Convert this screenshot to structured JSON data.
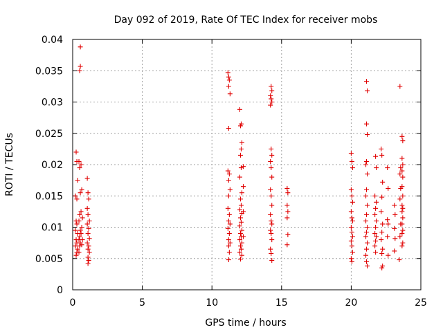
{
  "chart_data": {
    "type": "scatter",
    "title": "Day 092 of 2019, Rate Of TEC Index for receiver mobs",
    "xlabel": "GPS time / hours",
    "ylabel": "ROTI / TECUs",
    "xlim": [
      0,
      25
    ],
    "ylim": [
      0,
      0.04
    ],
    "xticks": [
      0,
      5,
      10,
      15,
      20,
      25
    ],
    "xtick_labels": [
      "0",
      "5",
      "10",
      "15",
      "20",
      "25"
    ],
    "yticks": [
      0,
      0.005,
      0.01,
      0.015,
      0.02,
      0.025,
      0.03,
      0.035,
      0.04
    ],
    "ytick_labels": [
      "0",
      "0.005",
      "0.01",
      "0.015",
      "0.02",
      "0.025",
      "0.03",
      "0.035",
      "0.04"
    ],
    "grid": true,
    "marker": "+",
    "marker_color": "#e00000",
    "series": [
      {
        "name": "ROTI",
        "points": [
          [
            0.25,
            0.022
          ],
          [
            0.3,
            0.0205
          ],
          [
            0.35,
            0.0175
          ],
          [
            0.2,
            0.015
          ],
          [
            0.3,
            0.0145
          ],
          [
            0.25,
            0.011
          ],
          [
            0.3,
            0.0105
          ],
          [
            0.2,
            0.0095
          ],
          [
            0.35,
            0.009
          ],
          [
            0.25,
            0.008
          ],
          [
            0.3,
            0.0075
          ],
          [
            0.2,
            0.007
          ],
          [
            0.35,
            0.0065
          ],
          [
            0.3,
            0.006
          ],
          [
            0.25,
            0.0055
          ],
          [
            0.45,
            0.0205
          ],
          [
            0.5,
            0.0195
          ],
          [
            0.55,
            0.0155
          ],
          [
            0.5,
            0.012
          ],
          [
            0.45,
            0.011
          ],
          [
            0.55,
            0.0095
          ],
          [
            0.5,
            0.0085
          ],
          [
            0.45,
            0.008
          ],
          [
            0.55,
            0.0075
          ],
          [
            0.5,
            0.007
          ],
          [
            0.45,
            0.006
          ],
          [
            0.55,
            0.0388
          ],
          [
            0.55,
            0.0357
          ],
          [
            0.5,
            0.035
          ],
          [
            0.6,
            0.02
          ],
          [
            0.65,
            0.016
          ],
          [
            0.6,
            0.0125
          ],
          [
            0.7,
            0.0115
          ],
          [
            0.65,
            0.01
          ],
          [
            0.6,
            0.009
          ],
          [
            0.7,
            0.008
          ],
          [
            0.65,
            0.0072
          ],
          [
            1.05,
            0.0178
          ],
          [
            1.1,
            0.0155
          ],
          [
            1.15,
            0.0145
          ],
          [
            1.05,
            0.013
          ],
          [
            1.1,
            0.012
          ],
          [
            1.2,
            0.011
          ],
          [
            1.05,
            0.0105
          ],
          [
            1.15,
            0.0098
          ],
          [
            1.1,
            0.009
          ],
          [
            1.2,
            0.0082
          ],
          [
            1.05,
            0.0075
          ],
          [
            1.15,
            0.007
          ],
          [
            1.1,
            0.0065
          ],
          [
            1.2,
            0.006
          ],
          [
            1.1,
            0.0052
          ],
          [
            1.15,
            0.0047
          ],
          [
            1.1,
            0.0042
          ],
          [
            11.15,
            0.0347
          ],
          [
            11.2,
            0.034
          ],
          [
            11.25,
            0.0335
          ],
          [
            11.2,
            0.0325
          ],
          [
            11.3,
            0.0313
          ],
          [
            11.2,
            0.0258
          ],
          [
            11.15,
            0.019
          ],
          [
            11.25,
            0.0185
          ],
          [
            11.2,
            0.0175
          ],
          [
            11.3,
            0.016
          ],
          [
            11.2,
            0.015
          ],
          [
            11.15,
            0.013
          ],
          [
            11.25,
            0.012
          ],
          [
            11.2,
            0.011
          ],
          [
            11.3,
            0.0105
          ],
          [
            11.15,
            0.0098
          ],
          [
            11.25,
            0.009
          ],
          [
            11.2,
            0.008
          ],
          [
            11.3,
            0.0075
          ],
          [
            11.2,
            0.007
          ],
          [
            11.25,
            0.006
          ],
          [
            11.2,
            0.0048
          ],
          [
            12.0,
            0.0288
          ],
          [
            12.1,
            0.0265
          ],
          [
            12.05,
            0.0262
          ],
          [
            12.15,
            0.0235
          ],
          [
            12.1,
            0.0225
          ],
          [
            12.05,
            0.0215
          ],
          [
            12.1,
            0.0195
          ],
          [
            12.0,
            0.018
          ],
          [
            12.15,
            0.0155
          ],
          [
            12.05,
            0.0145
          ],
          [
            12.1,
            0.0135
          ],
          [
            12.0,
            0.0128
          ],
          [
            12.15,
            0.0122
          ],
          [
            12.05,
            0.0115
          ],
          [
            12.1,
            0.0108
          ],
          [
            12.0,
            0.0102
          ],
          [
            12.15,
            0.0095
          ],
          [
            12.05,
            0.009
          ],
          [
            12.1,
            0.0085
          ],
          [
            12.0,
            0.008
          ],
          [
            12.15,
            0.0075
          ],
          [
            12.05,
            0.007
          ],
          [
            12.1,
            0.0065
          ],
          [
            12.0,
            0.006
          ],
          [
            12.15,
            0.0055
          ],
          [
            12.05,
            0.0049
          ],
          [
            12.25,
            0.0197
          ],
          [
            12.25,
            0.0165
          ],
          [
            12.25,
            0.0125
          ],
          [
            12.25,
            0.0085
          ],
          [
            14.25,
            0.0325
          ],
          [
            14.3,
            0.0318
          ],
          [
            14.2,
            0.031
          ],
          [
            14.25,
            0.0305
          ],
          [
            14.3,
            0.03
          ],
          [
            14.2,
            0.0295
          ],
          [
            14.25,
            0.0225
          ],
          [
            14.3,
            0.0215
          ],
          [
            14.2,
            0.0205
          ],
          [
            14.25,
            0.0195
          ],
          [
            14.3,
            0.018
          ],
          [
            14.2,
            0.016
          ],
          [
            14.25,
            0.015
          ],
          [
            14.3,
            0.0135
          ],
          [
            14.2,
            0.012
          ],
          [
            14.25,
            0.011
          ],
          [
            14.3,
            0.0105
          ],
          [
            14.2,
            0.0095
          ],
          [
            14.25,
            0.009
          ],
          [
            14.3,
            0.008
          ],
          [
            14.2,
            0.0065
          ],
          [
            14.25,
            0.0058
          ],
          [
            14.3,
            0.0047
          ],
          [
            15.4,
            0.0162
          ],
          [
            15.45,
            0.0155
          ],
          [
            15.4,
            0.0135
          ],
          [
            15.45,
            0.0125
          ],
          [
            15.4,
            0.0115
          ],
          [
            15.45,
            0.0088
          ],
          [
            15.4,
            0.0072
          ],
          [
            20.0,
            0.0218
          ],
          [
            20.05,
            0.0205
          ],
          [
            20.1,
            0.0195
          ],
          [
            20.0,
            0.016
          ],
          [
            20.05,
            0.015
          ],
          [
            20.1,
            0.014
          ],
          [
            20.0,
            0.0125
          ],
          [
            20.05,
            0.0115
          ],
          [
            20.1,
            0.011
          ],
          [
            20.0,
            0.01
          ],
          [
            20.05,
            0.0092
          ],
          [
            20.1,
            0.0085
          ],
          [
            20.0,
            0.0078
          ],
          [
            20.05,
            0.007
          ],
          [
            20.1,
            0.006
          ],
          [
            20.0,
            0.005
          ],
          [
            20.05,
            0.0045
          ],
          [
            21.1,
            0.0333
          ],
          [
            21.15,
            0.0318
          ],
          [
            21.1,
            0.0265
          ],
          [
            21.15,
            0.0248
          ],
          [
            21.1,
            0.0205
          ],
          [
            21.05,
            0.02
          ],
          [
            21.15,
            0.0185
          ],
          [
            21.1,
            0.016
          ],
          [
            21.05,
            0.015
          ],
          [
            21.15,
            0.0135
          ],
          [
            21.1,
            0.012
          ],
          [
            21.05,
            0.011
          ],
          [
            21.15,
            0.01
          ],
          [
            21.1,
            0.0092
          ],
          [
            21.05,
            0.0085
          ],
          [
            21.15,
            0.0075
          ],
          [
            21.1,
            0.0065
          ],
          [
            21.05,
            0.0055
          ],
          [
            21.1,
            0.0045
          ],
          [
            21.15,
            0.0038
          ],
          [
            21.75,
            0.0213
          ],
          [
            21.8,
            0.0195
          ],
          [
            21.7,
            0.015
          ],
          [
            21.8,
            0.014
          ],
          [
            21.75,
            0.013
          ],
          [
            21.7,
            0.012
          ],
          [
            21.8,
            0.011
          ],
          [
            21.75,
            0.01
          ],
          [
            21.7,
            0.009
          ],
          [
            21.8,
            0.0085
          ],
          [
            21.75,
            0.0078
          ],
          [
            21.7,
            0.007
          ],
          [
            21.75,
            0.006
          ],
          [
            22.15,
            0.0225
          ],
          [
            22.2,
            0.0215
          ],
          [
            22.25,
            0.0172
          ],
          [
            22.2,
            0.0148
          ],
          [
            22.15,
            0.0125
          ],
          [
            22.25,
            0.0105
          ],
          [
            22.2,
            0.0092
          ],
          [
            22.15,
            0.008
          ],
          [
            22.25,
            0.0065
          ],
          [
            22.2,
            0.0058
          ],
          [
            22.25,
            0.0038
          ],
          [
            22.2,
            0.0035
          ],
          [
            22.6,
            0.0195
          ],
          [
            22.65,
            0.0162
          ],
          [
            22.6,
            0.0112
          ],
          [
            22.65,
            0.0105
          ],
          [
            22.6,
            0.0085
          ],
          [
            22.65,
            0.0055
          ],
          [
            23.1,
            0.0135
          ],
          [
            23.15,
            0.012
          ],
          [
            23.1,
            0.0098
          ],
          [
            23.15,
            0.0082
          ],
          [
            23.1,
            0.0062
          ],
          [
            23.5,
            0.0325
          ],
          [
            23.55,
            0.0195
          ],
          [
            23.5,
            0.0185
          ],
          [
            23.55,
            0.0162
          ],
          [
            23.5,
            0.0145
          ],
          [
            23.55,
            0.0105
          ],
          [
            23.5,
            0.0085
          ],
          [
            23.45,
            0.0048
          ],
          [
            23.65,
            0.0245
          ],
          [
            23.7,
            0.0238
          ],
          [
            23.65,
            0.021
          ],
          [
            23.7,
            0.02
          ],
          [
            23.65,
            0.019
          ],
          [
            23.7,
            0.018
          ],
          [
            23.65,
            0.0165
          ],
          [
            23.7,
            0.015
          ],
          [
            23.65,
            0.0135
          ],
          [
            23.7,
            0.013
          ],
          [
            23.65,
            0.0125
          ],
          [
            23.7,
            0.0115
          ],
          [
            23.65,
            0.0105
          ],
          [
            23.7,
            0.0095
          ],
          [
            23.65,
            0.009
          ],
          [
            23.7,
            0.0075
          ],
          [
            23.65,
            0.007
          ]
        ]
      }
    ]
  }
}
